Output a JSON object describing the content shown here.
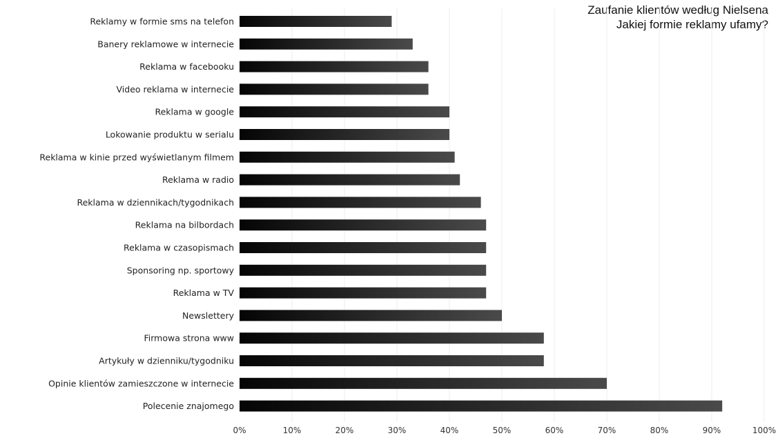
{
  "chart_data": {
    "type": "bar",
    "orientation": "horizontal",
    "title_line1": "Zaufanie klientów według Nielsena",
    "title_line2": "Jakiej formie reklamy ufamy?",
    "categories": [
      "Reklamy w formie sms na telefon",
      "Banery reklamowe w internecie",
      "Reklama w facebooku",
      "Video reklama w internecie",
      "Reklama w google",
      "Lokowanie produktu w serialu",
      "Reklama w kinie przed wyświetlanym filmem",
      "Reklama w radio",
      "Reklama w dziennikach/tygodnikach",
      "Reklama na bilbordach",
      "Reklama w czasopismach",
      "Sponsoring np. sportowy",
      "Reklama w TV",
      "Newslettery",
      "Firmowa strona www",
      "Artykuły w dzienniku/tygodniku",
      "Opinie klientów zamieszczone w internecie",
      "Polecenie znajomego"
    ],
    "values": [
      29,
      33,
      36,
      36,
      40,
      40,
      41,
      42,
      46,
      47,
      47,
      47,
      47,
      50,
      58,
      58,
      70,
      92
    ],
    "xlim": [
      0,
      100
    ],
    "x_ticks": [
      "0%",
      "10%",
      "20%",
      "30%",
      "40%",
      "50%",
      "60%",
      "70%",
      "80%",
      "90%",
      "100%"
    ],
    "grid": true,
    "bar_colors": {
      "start": "#050505",
      "end": "#4a4a4a"
    }
  }
}
